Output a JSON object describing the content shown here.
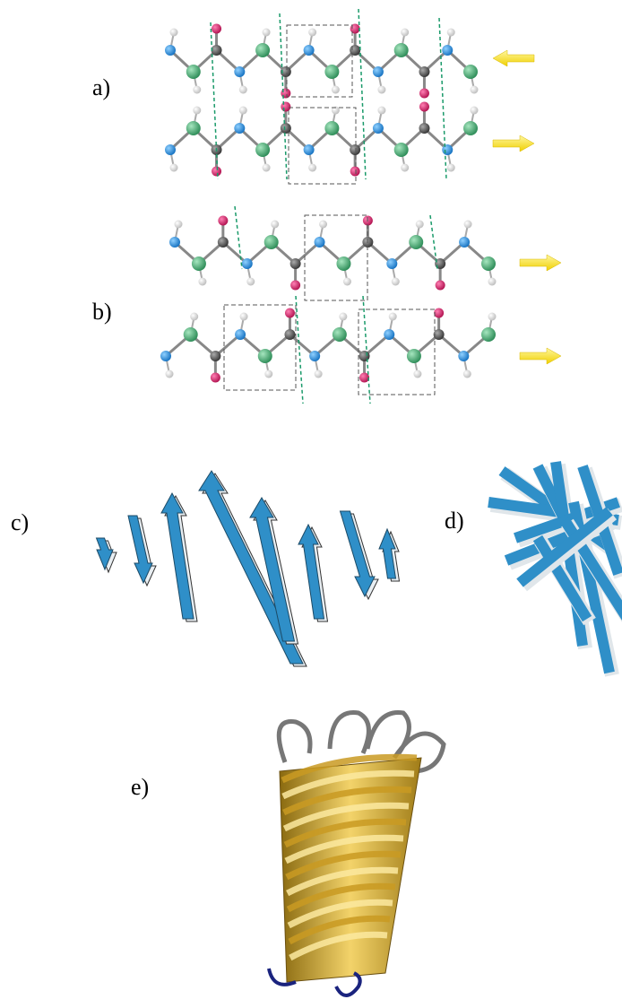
{
  "panels": [
    {
      "label": "a)"
    },
    {
      "label": "b)"
    },
    {
      "label": "c)"
    },
    {
      "label": "d)"
    },
    {
      "label": "e)"
    }
  ]
}
